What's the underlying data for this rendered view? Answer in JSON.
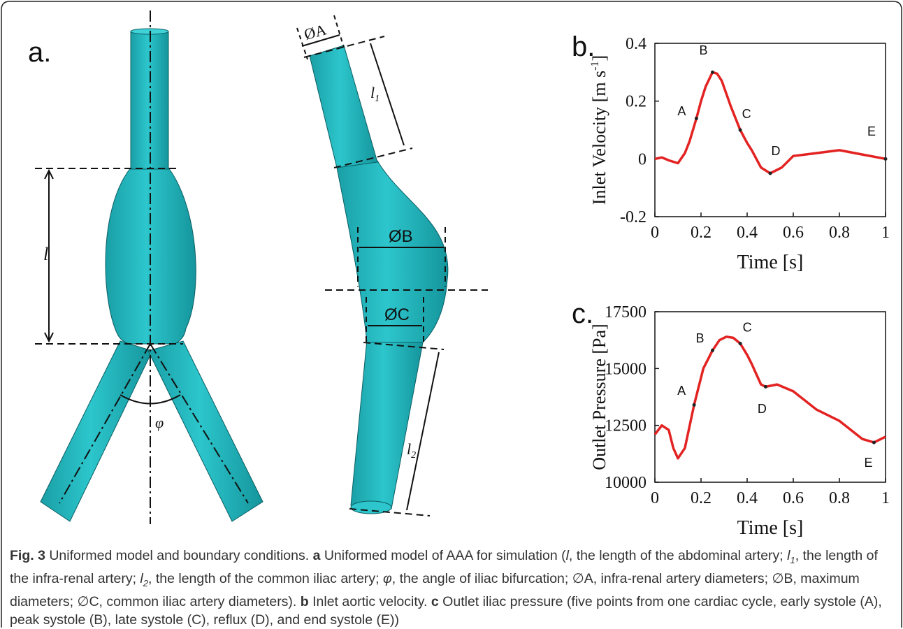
{
  "diagram": {
    "panel_label": "a.",
    "l": "l",
    "phi": "φ",
    "dA": "ØA",
    "l1": {
      "base": "l",
      "sub": "1"
    },
    "dB": "ØB",
    "dC": "ØC",
    "l2": {
      "base": "l",
      "sub": "2"
    }
  },
  "chart_data": [
    {
      "type": "line",
      "panel_label": "b.",
      "x_label": "Time [s]",
      "y_label": {
        "text": "Inlet Velocity [m s",
        "superscript": "-1",
        "suffix": "]"
      },
      "x": [
        0,
        0.03,
        0.06,
        0.1,
        0.13,
        0.15,
        0.18,
        0.2,
        0.22,
        0.25,
        0.27,
        0.29,
        0.31,
        0.33,
        0.35,
        0.37,
        0.4,
        0.42,
        0.46,
        0.5,
        0.55,
        0.6,
        0.7,
        0.8,
        0.9,
        1.0
      ],
      "values": [
        0,
        0.005,
        -0.005,
        -0.015,
        0.02,
        0.06,
        0.14,
        0.2,
        0.25,
        0.3,
        0.295,
        0.27,
        0.225,
        0.18,
        0.14,
        0.1,
        0.055,
        0.03,
        -0.03,
        -0.05,
        -0.03,
        0.01,
        0.02,
        0.03,
        0.015,
        0
      ],
      "color": "#e32222",
      "points": {
        "labels": [
          "A",
          "B",
          "C",
          "D",
          "E"
        ],
        "x": [
          0.18,
          0.25,
          0.37,
          0.5,
          1.0
        ],
        "y": [
          0.14,
          0.3,
          0.1,
          -0.05,
          0
        ]
      },
      "xlim": [
        0,
        1
      ],
      "xticks": [
        0,
        0.2,
        0.4,
        0.6,
        0.8,
        1
      ],
      "ylim": [
        -0.2,
        0.4
      ],
      "yticks": [
        -0.2,
        0,
        0.2,
        0.4
      ]
    },
    {
      "type": "line",
      "panel_label": "c.",
      "x_label": "Time [s]",
      "y_label": "Outlet Pressure [Pa]",
      "x": [
        0,
        0.03,
        0.06,
        0.08,
        0.1,
        0.13,
        0.17,
        0.21,
        0.25,
        0.28,
        0.31,
        0.34,
        0.37,
        0.4,
        0.42,
        0.46,
        0.48,
        0.53,
        0.6,
        0.7,
        0.8,
        0.85,
        0.9,
        0.95,
        1.0
      ],
      "values": [
        12100,
        12500,
        12300,
        11500,
        11050,
        11500,
        13400,
        15000,
        15800,
        16250,
        16400,
        16350,
        16100,
        15600,
        15200,
        14300,
        14200,
        14300,
        14000,
        13200,
        12700,
        12300,
        11900,
        11750,
        12000
      ],
      "color": "#e32222",
      "points": {
        "labels": [
          "A",
          "B",
          "C",
          "D",
          "E"
        ],
        "x": [
          0.17,
          0.25,
          0.37,
          0.48,
          0.95
        ],
        "y": [
          13400,
          15800,
          16100,
          14200,
          11750
        ]
      },
      "xlim": [
        0,
        1
      ],
      "xticks": [
        0,
        0.2,
        0.4,
        0.6,
        0.8,
        1
      ],
      "ylim": [
        10000,
        17500
      ],
      "yticks": [
        10000,
        12500,
        15000,
        17500
      ]
    }
  ],
  "caption": {
    "runs": [
      {
        "text": "Fig. 3",
        "style": "bold"
      },
      {
        "text": " Uniformed model and boundary conditions. ",
        "style": "normal"
      },
      {
        "text": "a",
        "style": "bold"
      },
      {
        "text": " Uniformed model of AAA for simulation (",
        "style": "normal"
      },
      {
        "text": "l",
        "style": "italic"
      },
      {
        "text": ", the length of the abdominal artery; ",
        "style": "normal"
      },
      {
        "text": "l",
        "style": "italic"
      },
      {
        "text": "1",
        "style": "sub"
      },
      {
        "text": ", the length of the infra-renal artery; ",
        "style": "normal"
      },
      {
        "text": "l",
        "style": "italic"
      },
      {
        "text": "2",
        "style": "sub"
      },
      {
        "text": ", the length of the common iliac artery; ",
        "style": "normal"
      },
      {
        "text": "φ",
        "style": "italic"
      },
      {
        "text": ", the angle of iliac bifurcation; ∅A, infra-renal artery diameters; ∅B, maximum diameters; ∅C, common iliac artery diameters). ",
        "style": "normal"
      },
      {
        "text": "b",
        "style": "bold"
      },
      {
        "text": " Inlet aortic velocity. ",
        "style": "normal"
      },
      {
        "text": "c",
        "style": "bold"
      },
      {
        "text": " Outlet iliac pressure (five points from one cardiac cycle, early systole (A), peak systole (B), late systole (C), reflux (D), and end systole (E))",
        "style": "normal"
      }
    ]
  }
}
